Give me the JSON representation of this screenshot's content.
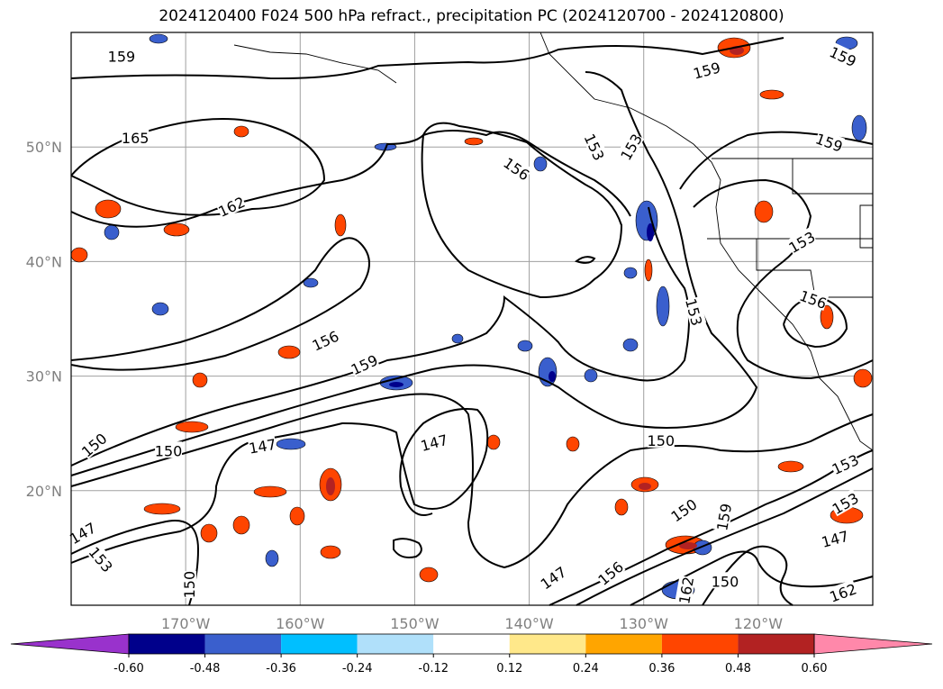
{
  "title": "2024120400 F024 500 hPa refract., precipitation PC (2024120700 - 2024120800)",
  "map": {
    "lon_range": [
      -180,
      -110
    ],
    "lat_range": [
      10,
      60
    ],
    "gridlines": true,
    "lat_ticks": [
      {
        "value": 50,
        "label": "50°N"
      },
      {
        "value": 40,
        "label": "40°N"
      },
      {
        "value": 30,
        "label": "30°N"
      },
      {
        "value": 20,
        "label": "20°N"
      }
    ],
    "lon_ticks": [
      {
        "value": -170,
        "label": "170°W"
      },
      {
        "value": -160,
        "label": "160°W"
      },
      {
        "value": -150,
        "label": "150°W"
      },
      {
        "value": -140,
        "label": "140°W"
      },
      {
        "value": -130,
        "label": "130°W"
      },
      {
        "value": -120,
        "label": "120°W"
      }
    ],
    "contour_labels": [
      {
        "text": "159",
        "lon": -175.6,
        "lat": 57.9,
        "rotate": 0
      },
      {
        "text": "159",
        "lon": -124.5,
        "lat": 56.7,
        "rotate": -15
      },
      {
        "text": "159",
        "lon": -112.6,
        "lat": 57.9,
        "rotate": 25
      },
      {
        "text": "165",
        "lon": -174.4,
        "lat": 50.8,
        "rotate": 0
      },
      {
        "text": "153",
        "lon": -134.3,
        "lat": 50.0,
        "rotate": 65
      },
      {
        "text": "153",
        "lon": -131.1,
        "lat": 50.0,
        "rotate": -60
      },
      {
        "text": "159",
        "lon": -113.8,
        "lat": 50.4,
        "rotate": 20
      },
      {
        "text": "156",
        "lon": -141.1,
        "lat": 48.1,
        "rotate": 35
      },
      {
        "text": "162",
        "lon": -166.0,
        "lat": 44.8,
        "rotate": -25
      },
      {
        "text": "153",
        "lon": -116.2,
        "lat": 41.7,
        "rotate": -30
      },
      {
        "text": "153",
        "lon": -125.6,
        "lat": 35.6,
        "rotate": 75
      },
      {
        "text": "156",
        "lon": -115.2,
        "lat": 36.7,
        "rotate": 20
      },
      {
        "text": "156",
        "lon": -157.8,
        "lat": 33.1,
        "rotate": -25
      },
      {
        "text": "159",
        "lon": -154.4,
        "lat": 31.0,
        "rotate": -25
      },
      {
        "text": "150",
        "lon": -178.0,
        "lat": 24.0,
        "rotate": -40
      },
      {
        "text": "150",
        "lon": -171.5,
        "lat": 23.5,
        "rotate": 0
      },
      {
        "text": "147",
        "lon": -163.3,
        "lat": 23.9,
        "rotate": -10
      },
      {
        "text": "147",
        "lon": -148.3,
        "lat": 24.2,
        "rotate": -15
      },
      {
        "text": "150",
        "lon": -128.5,
        "lat": 24.4,
        "rotate": 0
      },
      {
        "text": "153",
        "lon": -112.4,
        "lat": 22.3,
        "rotate": -25
      },
      {
        "text": "150",
        "lon": -126.5,
        "lat": 18.3,
        "rotate": -35
      },
      {
        "text": "159",
        "lon": -123.0,
        "lat": 17.7,
        "rotate": -80
      },
      {
        "text": "153",
        "lon": -112.4,
        "lat": 18.9,
        "rotate": -30
      },
      {
        "text": "147",
        "lon": -179.0,
        "lat": 16.3,
        "rotate": -30
      },
      {
        "text": "147",
        "lon": -113.3,
        "lat": 15.8,
        "rotate": -15
      },
      {
        "text": "153",
        "lon": -177.4,
        "lat": 14.0,
        "rotate": 50
      },
      {
        "text": "147",
        "lon": -137.9,
        "lat": 12.4,
        "rotate": -35
      },
      {
        "text": "156",
        "lon": -132.9,
        "lat": 12.8,
        "rotate": -40
      },
      {
        "text": "150",
        "lon": -122.9,
        "lat": 12.1,
        "rotate": 0
      },
      {
        "text": "150",
        "lon": -169.7,
        "lat": 11.8,
        "rotate": -90
      },
      {
        "text": "162",
        "lon": -126.3,
        "lat": 11.3,
        "rotate": -80
      },
      {
        "text": "162",
        "lon": -112.6,
        "lat": 11.1,
        "rotate": -20
      }
    ]
  },
  "colorbar": {
    "ticks": [
      "-0.60",
      "-0.48",
      "-0.36",
      "-0.24",
      "-0.12",
      "0.12",
      "0.24",
      "0.36",
      "0.48",
      "0.60"
    ],
    "colors": [
      "#9932cc",
      "#00008b",
      "#3a5fcd",
      "#00bfff",
      "#b0e0fa",
      "#ffffff",
      "#ffe88a",
      "#ffa500",
      "#ff4500",
      "#b22222",
      "#ff88aa"
    ]
  }
}
